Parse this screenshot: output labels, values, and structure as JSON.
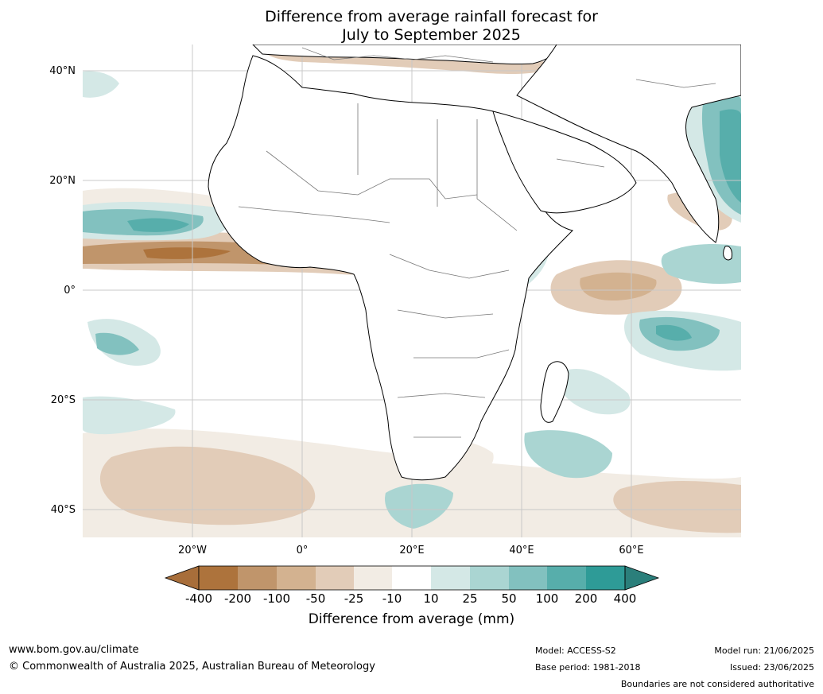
{
  "title": {
    "line1": "Difference from average rainfall forecast for",
    "line2": "July to September 2025"
  },
  "map": {
    "lat_labels": [
      "40°N",
      "20°N",
      "0°",
      "20°S",
      "40°S"
    ],
    "lon_labels": [
      "20°W",
      "0°",
      "20°E",
      "40°E",
      "60°E"
    ]
  },
  "colorbar": {
    "title": "Difference from average (mm)",
    "tick_labels": [
      "-400",
      "-200",
      "-100",
      "-50",
      "-25",
      "-10",
      "10",
      "25",
      "50",
      "100",
      "200",
      "400"
    ],
    "colors": [
      "#a86e3a",
      "#ad733c",
      "#c0956b",
      "#d3b290",
      "#e2ccb8",
      "#f2ece4",
      "#ffffff",
      "#d4e8e6",
      "#aad5d2",
      "#82c1bf",
      "#57aeab",
      "#2e9b97",
      "#2b7f7b"
    ]
  },
  "footer": {
    "website": "www.bom.gov.au/climate",
    "copyright": "© Commonwealth of Australia 2025, Australian Bureau of Meteorology",
    "model": "Model: ACCESS-S2",
    "base_period": "Base period: 1981-2018",
    "model_run": "Model run: 21/06/2025",
    "issued": "Issued: 23/06/2025",
    "disclaimer": "Boundaries are not considered authoritative"
  }
}
